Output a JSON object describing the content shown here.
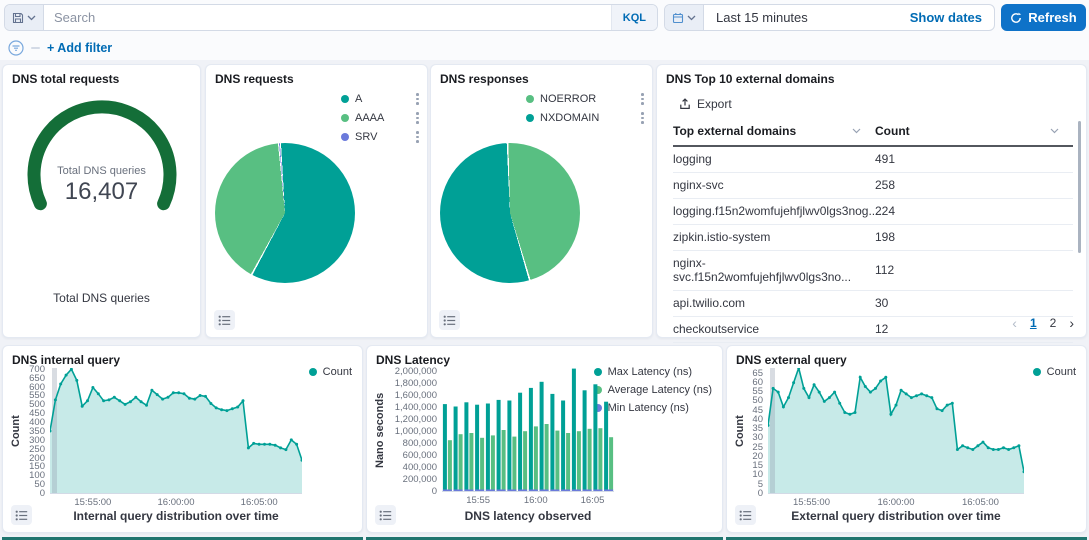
{
  "topbar": {
    "search_placeholder": "Search",
    "kql_label": "KQL",
    "time_range": "Last 15 minutes",
    "show_dates_label": "Show dates",
    "refresh_label": "Refresh"
  },
  "filter_bar": {
    "add_filter_label": "+ Add filter"
  },
  "colors": {
    "teal": "#00a096",
    "green": "#58bf82",
    "purple_blue": "#6b7adb",
    "gauge_green": "#146e38",
    "link_blue": "#006bb4",
    "refresh_blue": "#0e72c8"
  },
  "panels": {
    "total": {
      "title": "DNS total requests",
      "center_label": "Total DNS queries",
      "value": "16,407",
      "bottom_label": "Total DNS queries"
    },
    "requests": {
      "title": "DNS requests"
    },
    "responses": {
      "title": "DNS responses"
    },
    "top_domains": {
      "title": "DNS Top 10 external domains",
      "export_label": "Export",
      "columns": [
        "Top external domains",
        "Count"
      ],
      "rows": [
        {
          "domain": "logging",
          "count": "491"
        },
        {
          "domain": "nginx-svc",
          "count": "258"
        },
        {
          "domain": "logging.f15n2womfujehfjlwv0lgs3nog....",
          "count": "224"
        },
        {
          "domain": "zipkin.istio-system",
          "count": "198"
        },
        {
          "domain": "nginx-svc.f15n2womfujehfjlwv0lgs3no...",
          "count": "112"
        },
        {
          "domain": "api.twilio.com",
          "count": "30"
        },
        {
          "domain": "checkoutservice",
          "count": "12"
        }
      ],
      "pagination": {
        "prev": "‹",
        "pages": [
          "1",
          "2"
        ],
        "active": "1",
        "next": "›"
      }
    },
    "internal": {
      "title": "DNS internal query"
    },
    "latency": {
      "title": "DNS Latency"
    },
    "external": {
      "title": "DNS external query"
    }
  },
  "chart_data": [
    {
      "id": "total-gauge",
      "type": "gauge",
      "title": "DNS total requests",
      "label": "Total DNS queries",
      "value": 16407,
      "display": "16,407",
      "color": "#146e38"
    },
    {
      "id": "requests-pie",
      "type": "pie",
      "title": "DNS requests",
      "start_deg": -4,
      "slices": [
        {
          "label": "A",
          "value": 59,
          "color": "#00a096"
        },
        {
          "label": "AAAA",
          "value": 40.7,
          "color": "#58bf82"
        },
        {
          "label": "SRV",
          "value": 0.3,
          "color": "#6b7adb"
        }
      ]
    },
    {
      "id": "responses-pie",
      "type": "pie",
      "title": "DNS responses",
      "start_deg": -2,
      "slices": [
        {
          "label": "NOERROR",
          "value": 46,
          "color": "#58bf82"
        },
        {
          "label": "NXDOMAIN",
          "value": 54,
          "color": "#00a096"
        }
      ]
    },
    {
      "id": "internal-area",
      "type": "area",
      "title": "DNS internal query",
      "xlabel": "Internal query distribution over time",
      "ylabel": "Count",
      "ylim": [
        0,
        710
      ],
      "y_ticks": [
        0,
        50,
        100,
        150,
        200,
        250,
        300,
        350,
        400,
        450,
        500,
        550,
        600,
        650,
        700
      ],
      "x_ticks": [
        {
          "label": "15:55:00",
          "pos": 0.17
        },
        {
          "label": "16:00:00",
          "pos": 0.5
        },
        {
          "label": "16:05:00",
          "pos": 0.83
        }
      ],
      "series": [
        {
          "name": "Count",
          "color": "#00a096",
          "values": [
            355,
            530,
            620,
            670,
            703,
            640,
            495,
            525,
            600,
            565,
            525,
            530,
            545,
            525,
            505,
            520,
            545,
            520,
            500,
            585,
            560,
            535,
            545,
            570,
            570,
            565,
            540,
            535,
            555,
            550,
            510,
            485,
            475,
            470,
            480,
            490,
            525,
            260,
            285,
            280,
            280,
            280,
            275,
            260,
            250,
            305,
            280,
            190
          ]
        }
      ]
    },
    {
      "id": "latency-bars",
      "type": "bar",
      "title": "DNS Latency",
      "xlabel": "DNS latency observed",
      "ylabel": "Nano seconds",
      "ylim": [
        0,
        2060000
      ],
      "y_ticks": [
        0,
        200000,
        400000,
        600000,
        800000,
        1000000,
        1200000,
        1400000,
        1600000,
        1800000,
        2000000
      ],
      "x_ticks": [
        {
          "label": "15:55",
          "pos": 0.21
        },
        {
          "label": "16:00",
          "pos": 0.545
        },
        {
          "label": "16:05",
          "pos": 0.875
        }
      ],
      "series": [
        {
          "name": "Max Latency (ns)",
          "color": "#00a096",
          "values": [
            1460000,
            1420000,
            1490000,
            1450000,
            1470000,
            1530000,
            1520000,
            1650000,
            1730000,
            1830000,
            1630000,
            1520000,
            2050000,
            1690000,
            1790000,
            1500000
          ]
        },
        {
          "name": "Average Latency (ns)",
          "color": "#58bf82",
          "values": [
            860000,
            960000,
            980000,
            900000,
            940000,
            1030000,
            920000,
            1010000,
            1090000,
            1130000,
            1020000,
            980000,
            1010000,
            1050000,
            1060000,
            910000
          ]
        },
        {
          "name": "Min Latency (ns)",
          "color": "#6b7adb",
          "values": [
            25000,
            25000,
            25000,
            25000,
            25000,
            25000,
            25000,
            25000,
            25000,
            25000,
            25000,
            25000,
            25000,
            25000,
            25000,
            25000
          ]
        }
      ]
    },
    {
      "id": "external-area",
      "type": "area",
      "title": "DNS external query",
      "xlabel": "External query distribution over time",
      "ylabel": "Count",
      "ylim": [
        0,
        68
      ],
      "y_ticks": [
        0,
        5,
        10,
        15,
        20,
        25,
        30,
        35,
        40,
        45,
        50,
        55,
        60,
        65
      ],
      "x_ticks": [
        {
          "label": "15:55:00",
          "pos": 0.17
        },
        {
          "label": "16:00:00",
          "pos": 0.5
        },
        {
          "label": "16:05:00",
          "pos": 0.83
        }
      ],
      "series": [
        {
          "name": "Count",
          "color": "#00a096",
          "values": [
            37,
            57,
            55,
            47,
            52,
            60,
            68,
            57,
            52,
            59,
            55,
            50,
            52,
            55,
            49,
            44,
            43,
            44,
            63,
            58,
            55,
            57,
            61,
            63,
            43,
            48,
            56,
            54,
            52,
            53,
            54,
            53,
            52,
            46,
            45,
            48,
            49,
            24,
            26,
            25,
            24,
            26,
            28,
            25,
            24,
            24,
            25,
            24,
            25,
            26,
            12
          ]
        }
      ]
    }
  ]
}
